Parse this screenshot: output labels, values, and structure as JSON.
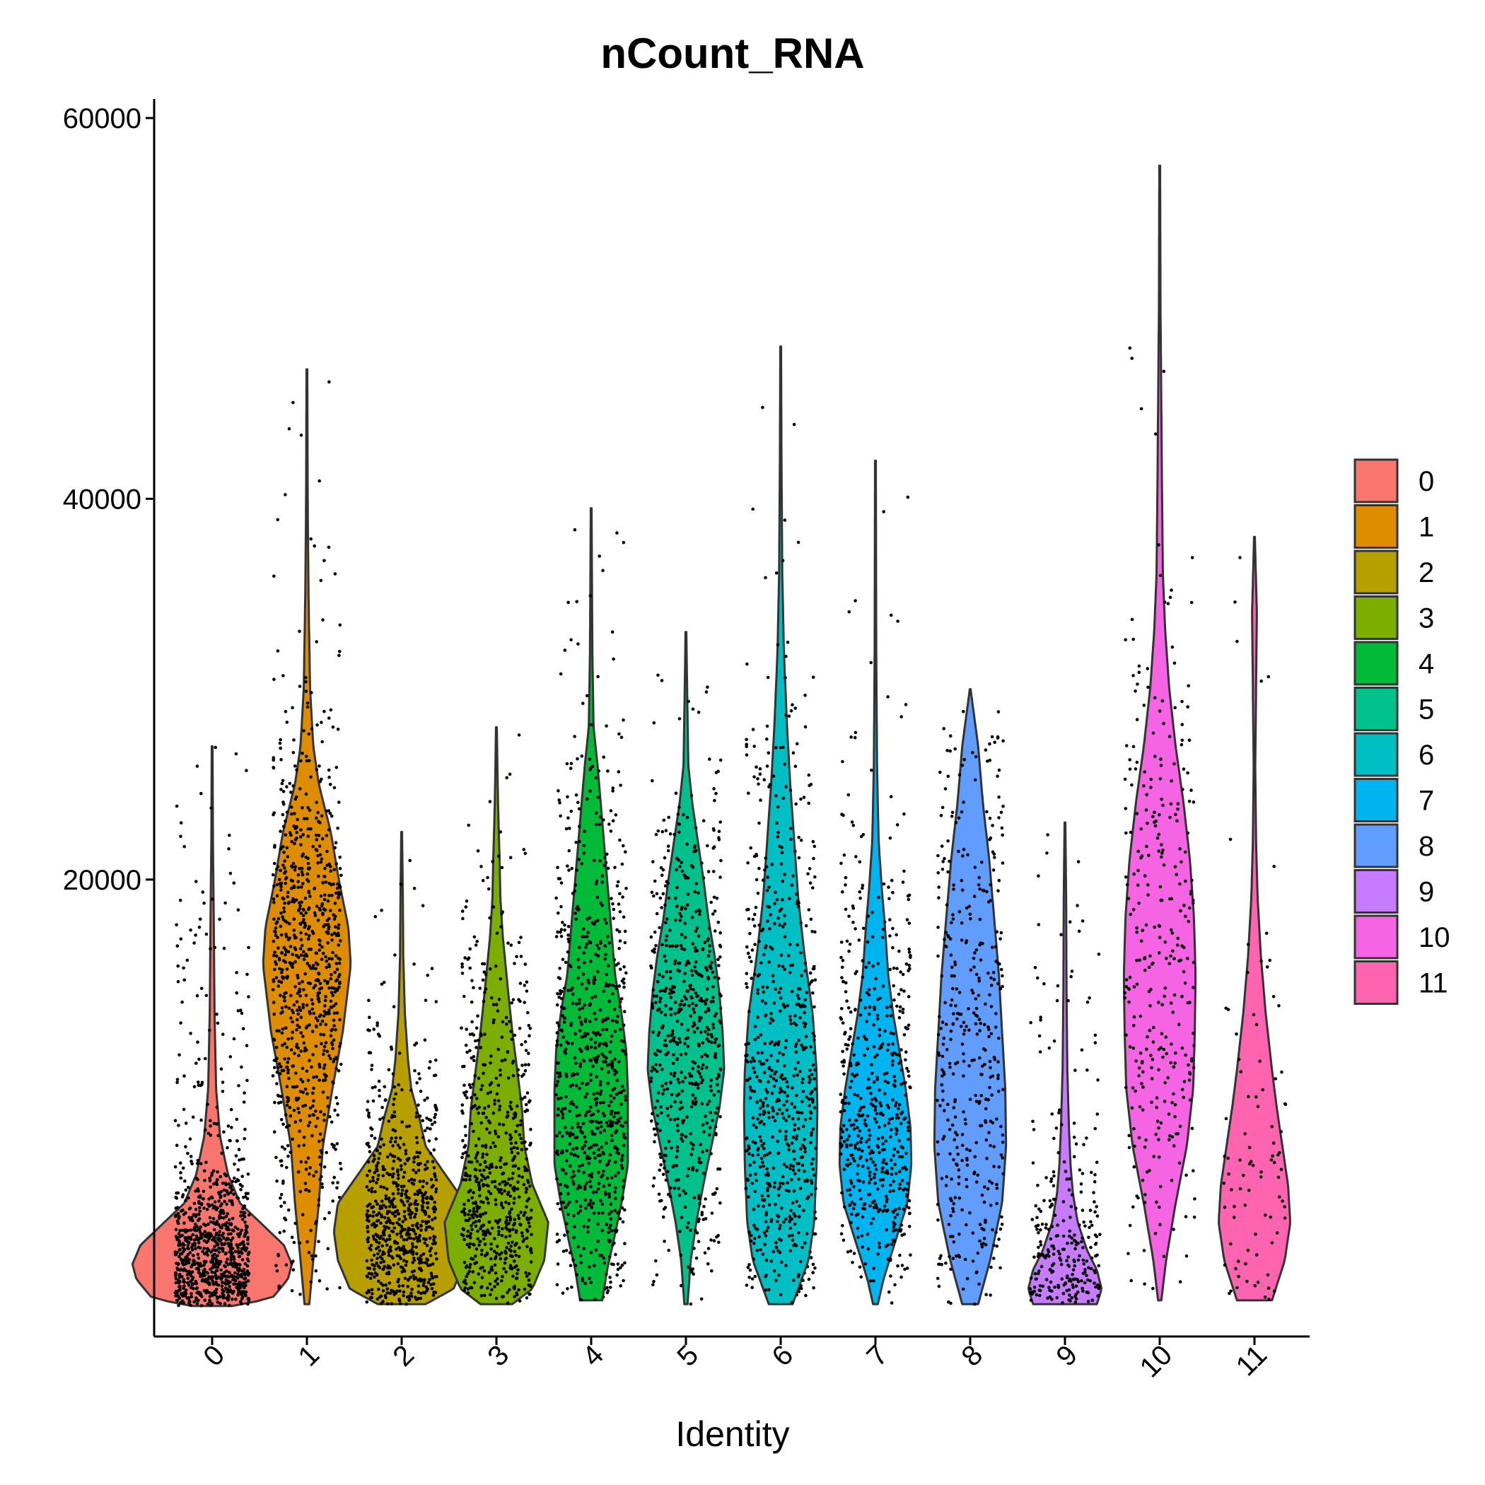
{
  "chart_data": {
    "type": "violin",
    "title": "nCount_RNA",
    "xlabel": "Identity",
    "ylabel": "",
    "ylim": [
      -4000,
      61000
    ],
    "yticks": [
      20000,
      40000,
      60000
    ],
    "grid": false,
    "legend_position": "right",
    "categories": [
      "0",
      "1",
      "2",
      "3",
      "4",
      "5",
      "6",
      "7",
      "8",
      "9",
      "10",
      "11"
    ],
    "colors": [
      "#F8766D",
      "#DE8C00",
      "#B79F00",
      "#7CAE00",
      "#00BA38",
      "#00C08B",
      "#00BFC4",
      "#00B4F0",
      "#619CFF",
      "#C77CFF",
      "#F564E3",
      "#FF64B0"
    ],
    "series": [
      {
        "name": "0",
        "min": -2400,
        "max": 27000,
        "median": -200,
        "profile": [
          [
            -2400,
            0.25
          ],
          [
            -2000,
            0.75
          ],
          [
            -1000,
            0.95
          ],
          [
            -200,
            1.0
          ],
          [
            800,
            0.9
          ],
          [
            1800,
            0.65
          ],
          [
            3000,
            0.35
          ],
          [
            4500,
            0.2
          ],
          [
            6500,
            0.1
          ],
          [
            9000,
            0.05
          ],
          [
            13000,
            0.03
          ],
          [
            18000,
            0.02
          ],
          [
            22000,
            0.01
          ],
          [
            27000,
            0.005
          ]
        ],
        "points": 900,
        "spread": 95
      },
      {
        "name": "1",
        "min": -2300,
        "max": 46800,
        "median": 15000,
        "profile": [
          [
            -2300,
            0.03
          ],
          [
            0,
            0.08
          ],
          [
            3000,
            0.15
          ],
          [
            6000,
            0.2
          ],
          [
            9000,
            0.32
          ],
          [
            12000,
            0.45
          ],
          [
            15500,
            0.55
          ],
          [
            17500,
            0.52
          ],
          [
            20000,
            0.4
          ],
          [
            22500,
            0.3
          ],
          [
            25000,
            0.15
          ],
          [
            27000,
            0.08
          ],
          [
            30000,
            0.04
          ],
          [
            35000,
            0.02
          ],
          [
            40000,
            0.01
          ],
          [
            46800,
            0.005
          ]
        ],
        "points": 850,
        "spread": 88
      },
      {
        "name": "2",
        "min": -2300,
        "max": 22500,
        "median": 1500,
        "profile": [
          [
            -2300,
            0.3
          ],
          [
            -1500,
            0.65
          ],
          [
            0,
            0.8
          ],
          [
            1500,
            0.85
          ],
          [
            3000,
            0.8
          ],
          [
            4500,
            0.55
          ],
          [
            6000,
            0.3
          ],
          [
            7500,
            0.22
          ],
          [
            9000,
            0.12
          ],
          [
            10500,
            0.08
          ],
          [
            13000,
            0.04
          ],
          [
            16000,
            0.02
          ],
          [
            19000,
            0.015
          ],
          [
            22500,
            0.005
          ]
        ],
        "points": 700,
        "spread": 90
      },
      {
        "name": "3",
        "min": -2300,
        "max": 28000,
        "median": 2500,
        "profile": [
          [
            -2300,
            0.2
          ],
          [
            -1500,
            0.45
          ],
          [
            0,
            0.6
          ],
          [
            2000,
            0.65
          ],
          [
            4000,
            0.45
          ],
          [
            6000,
            0.35
          ],
          [
            8000,
            0.32
          ],
          [
            10000,
            0.26
          ],
          [
            12000,
            0.2
          ],
          [
            14000,
            0.15
          ],
          [
            17000,
            0.08
          ],
          [
            19000,
            0.05
          ],
          [
            21000,
            0.04
          ],
          [
            24000,
            0.02
          ],
          [
            28000,
            0.005
          ]
        ],
        "points": 650,
        "spread": 90
      },
      {
        "name": "4",
        "min": -2100,
        "max": 39500,
        "median": 9000,
        "profile": [
          [
            -2100,
            0.14
          ],
          [
            -500,
            0.2
          ],
          [
            1000,
            0.28
          ],
          [
            3000,
            0.38
          ],
          [
            5000,
            0.46
          ],
          [
            7000,
            0.46
          ],
          [
            9000,
            0.46
          ],
          [
            11000,
            0.44
          ],
          [
            13000,
            0.38
          ],
          [
            15000,
            0.3
          ],
          [
            18000,
            0.24
          ],
          [
            21000,
            0.18
          ],
          [
            24000,
            0.12
          ],
          [
            26000,
            0.08
          ],
          [
            28000,
            0.03
          ],
          [
            32000,
            0.015
          ],
          [
            39500,
            0.005
          ]
        ],
        "points": 750,
        "spread": 90
      },
      {
        "name": "5",
        "min": -2300,
        "max": 33000,
        "median": 11000,
        "profile": [
          [
            -2300,
            0.02
          ],
          [
            0,
            0.06
          ],
          [
            2000,
            0.13
          ],
          [
            4000,
            0.22
          ],
          [
            6000,
            0.32
          ],
          [
            8000,
            0.42
          ],
          [
            10000,
            0.48
          ],
          [
            12000,
            0.46
          ],
          [
            14000,
            0.42
          ],
          [
            16000,
            0.36
          ],
          [
            18000,
            0.28
          ],
          [
            20000,
            0.22
          ],
          [
            22000,
            0.15
          ],
          [
            24000,
            0.08
          ],
          [
            26000,
            0.03
          ],
          [
            30000,
            0.015
          ],
          [
            33000,
            0.005
          ]
        ],
        "points": 600,
        "spread": 90
      },
      {
        "name": "6",
        "min": -2300,
        "max": 48000,
        "median": 9000,
        "profile": [
          [
            -2300,
            0.15
          ],
          [
            0,
            0.35
          ],
          [
            2000,
            0.42
          ],
          [
            5000,
            0.45
          ],
          [
            8000,
            0.46
          ],
          [
            10000,
            0.45
          ],
          [
            13000,
            0.4
          ],
          [
            16000,
            0.3
          ],
          [
            19000,
            0.22
          ],
          [
            22000,
            0.17
          ],
          [
            25000,
            0.12
          ],
          [
            28000,
            0.08
          ],
          [
            32000,
            0.04
          ],
          [
            36000,
            0.02
          ],
          [
            42000,
            0.01
          ],
          [
            48000,
            0.005
          ]
        ],
        "points": 650,
        "spread": 90
      },
      {
        "name": "7",
        "min": -2300,
        "max": 42000,
        "median": 6000,
        "profile": [
          [
            -2300,
            0.03
          ],
          [
            -1000,
            0.1
          ],
          [
            1000,
            0.25
          ],
          [
            3000,
            0.4
          ],
          [
            5000,
            0.45
          ],
          [
            7000,
            0.44
          ],
          [
            9000,
            0.38
          ],
          [
            11000,
            0.3
          ],
          [
            13000,
            0.22
          ],
          [
            15000,
            0.16
          ],
          [
            17500,
            0.12
          ],
          [
            19500,
            0.08
          ],
          [
            22000,
            0.04
          ],
          [
            26000,
            0.02
          ],
          [
            32000,
            0.01
          ],
          [
            42000,
            0.005
          ]
        ],
        "points": 550,
        "spread": 90
      },
      {
        "name": "8",
        "min": -2300,
        "max": 30000,
        "median": 8000,
        "profile": [
          [
            -2300,
            0.1
          ],
          [
            0,
            0.25
          ],
          [
            3000,
            0.4
          ],
          [
            6000,
            0.45
          ],
          [
            9000,
            0.44
          ],
          [
            12000,
            0.4
          ],
          [
            15000,
            0.36
          ],
          [
            18000,
            0.3
          ],
          [
            21000,
            0.24
          ],
          [
            24000,
            0.16
          ],
          [
            27000,
            0.1
          ],
          [
            30000,
            0.005
          ]
        ],
        "points": 400,
        "spread": 85
      },
      {
        "name": "9",
        "min": -2300,
        "max": 23000,
        "median": -1000,
        "profile": [
          [
            -2300,
            0.4
          ],
          [
            -1500,
            0.46
          ],
          [
            -500,
            0.4
          ],
          [
            500,
            0.28
          ],
          [
            2000,
            0.16
          ],
          [
            3500,
            0.1
          ],
          [
            5000,
            0.07
          ],
          [
            7000,
            0.05
          ],
          [
            10000,
            0.03
          ],
          [
            14000,
            0.02
          ],
          [
            19000,
            0.015
          ],
          [
            23000,
            0.005
          ]
        ],
        "points": 280,
        "spread": 90
      },
      {
        "name": "10",
        "min": -2100,
        "max": 57500,
        "median": 16000,
        "profile": [
          [
            -2100,
            0.02
          ],
          [
            0,
            0.08
          ],
          [
            3000,
            0.2
          ],
          [
            6000,
            0.34
          ],
          [
            9000,
            0.42
          ],
          [
            12000,
            0.44
          ],
          [
            15000,
            0.45
          ],
          [
            18000,
            0.43
          ],
          [
            21000,
            0.38
          ],
          [
            24000,
            0.3
          ],
          [
            27000,
            0.2
          ],
          [
            30000,
            0.12
          ],
          [
            33000,
            0.07
          ],
          [
            36000,
            0.04
          ],
          [
            40000,
            0.03
          ],
          [
            45000,
            0.02
          ],
          [
            50000,
            0.01
          ],
          [
            57500,
            0.005
          ]
        ],
        "points": 320,
        "spread": 90
      },
      {
        "name": "11",
        "min": -2100,
        "max": 38000,
        "median": 5000,
        "profile": [
          [
            -2100,
            0.22
          ],
          [
            0,
            0.38
          ],
          [
            2000,
            0.45
          ],
          [
            4000,
            0.42
          ],
          [
            6000,
            0.35
          ],
          [
            8000,
            0.28
          ],
          [
            10000,
            0.22
          ],
          [
            13000,
            0.14
          ],
          [
            16000,
            0.08
          ],
          [
            19000,
            0.04
          ],
          [
            22000,
            0.02
          ],
          [
            26000,
            0.01
          ],
          [
            30000,
            0.02
          ],
          [
            34000,
            0.03
          ],
          [
            38000,
            0.005
          ]
        ],
        "points": 90,
        "spread": 80
      }
    ]
  }
}
